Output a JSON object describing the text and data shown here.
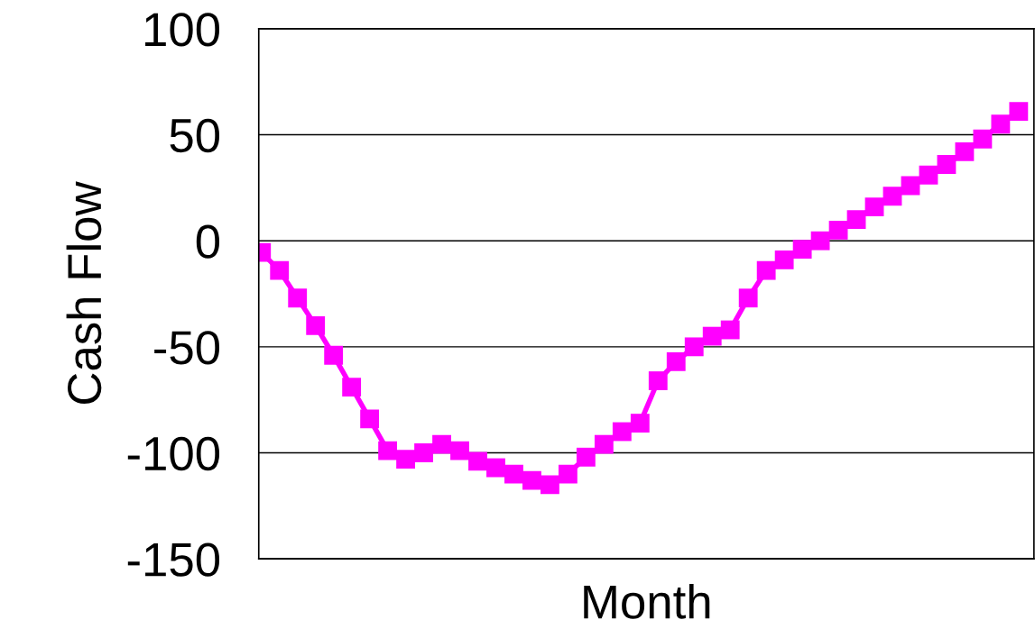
{
  "chart_data": {
    "type": "line",
    "xlabel": "Month",
    "ylabel": "Cash Flow",
    "categories": [
      null,
      null,
      null,
      null,
      null,
      null,
      null,
      null,
      null,
      null,
      null,
      null,
      null,
      null,
      null,
      null,
      null,
      null,
      null,
      null,
      null,
      null,
      null,
      null,
      null,
      null,
      null,
      null,
      null,
      null,
      null,
      null,
      null,
      null,
      null,
      null,
      null,
      null,
      null,
      null,
      null,
      null,
      null
    ],
    "series": [
      {
        "color": "#ff00ff",
        "values": [
          -5.5,
          -14,
          -27,
          -40,
          -54,
          -69,
          -84,
          -99,
          -103,
          -100,
          -96,
          -99,
          -104,
          -107,
          -110,
          -113,
          -115,
          -110,
          -102,
          -96,
          -90,
          -86,
          -66,
          -57,
          -50,
          -45,
          -42,
          -27,
          -14,
          -9,
          -4,
          0,
          5,
          10,
          16,
          21,
          26,
          31,
          36,
          42,
          48,
          55,
          61
        ]
      }
    ],
    "ylim": [
      -150,
      100
    ],
    "yticks": [
      -150,
      -100,
      -50,
      0,
      50,
      100
    ],
    "grid": "y",
    "marker": "square",
    "line_style": "solid",
    "tick_labels": "y"
  }
}
